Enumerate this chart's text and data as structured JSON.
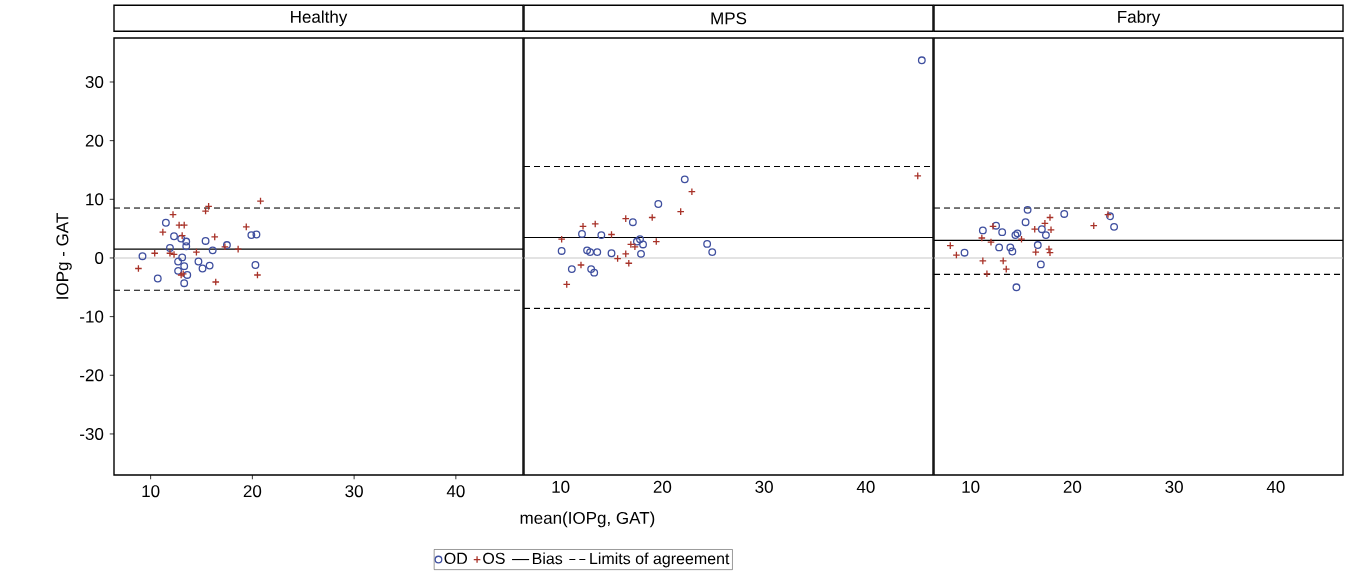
{
  "chart_data": [
    {
      "type": "scatter",
      "title": "Healthy",
      "ylabel": "IOPg - GAT",
      "xlim": [
        6.4,
        46.6
      ],
      "ylim": [
        -37,
        37.5
      ],
      "xticks": [
        10,
        20,
        30,
        40
      ],
      "yticks": [
        -30,
        -20,
        -10,
        0,
        10,
        20,
        30
      ],
      "grid": false,
      "legend": false,
      "series": [
        {
          "color": "#3f4f9f",
          "marker": "circle",
          "x": [
            9.2,
            10.7,
            11.5,
            12.3,
            11.9,
            13.0,
            13.5,
            13.5,
            13.1,
            12.7,
            12.7,
            13.3,
            13.6,
            13.3,
            14.7,
            15.1,
            15.8,
            15.4,
            16.1,
            17.5,
            19.9,
            20.4,
            20.3
          ],
          "values": [
            0.3,
            -3.5,
            6.0,
            3.7,
            1.7,
            3.3,
            2.8,
            2.0,
            0.1,
            -0.6,
            -2.2,
            -1.4,
            -2.9,
            -4.3,
            -0.6,
            -1.8,
            -1.3,
            2.9,
            1.3,
            2.2,
            3.9,
            4.0,
            -1.2
          ]
        },
        {
          "color": "#a83228",
          "marker": "cross",
          "x": [
            8.8,
            10.4,
            11.2,
            12.2,
            11.9,
            12.3,
            12.8,
            13.3,
            13.1,
            13.0,
            13.2,
            14.5,
            15.4,
            15.7,
            16.3,
            16.4,
            17.3,
            18.6,
            19.4,
            20.8,
            20.5
          ],
          "values": [
            -1.8,
            0.8,
            4.4,
            7.4,
            0.8,
            0.6,
            5.6,
            5.6,
            3.8,
            -2.9,
            -2.7,
            1.0,
            8.0,
            8.8,
            3.6,
            -4.1,
            1.9,
            1.5,
            5.3,
            9.7,
            -2.9
          ]
        }
      ],
      "ref_lines": [
        {
          "axis": "y",
          "value": 0,
          "color": "#c8c8c8",
          "line_style": "solid"
        },
        {
          "axis": "y",
          "value": 1.5,
          "color": "#000000",
          "line_style": "solid"
        },
        {
          "axis": "y",
          "value": 8.5,
          "color": "#000000",
          "line_style": "dashed"
        },
        {
          "axis": "y",
          "value": -5.5,
          "color": "#000000",
          "line_style": "dashed"
        }
      ]
    },
    {
      "type": "scatter",
      "title": "MPS",
      "xlabel": "mean(IOPg, GAT)",
      "xlim": [
        6.4,
        46.6
      ],
      "ylim": [
        -37,
        37.5
      ],
      "xticks": [
        10,
        20,
        30,
        40
      ],
      "yticks": [
        -30,
        -20,
        -10,
        0,
        10,
        20,
        30
      ],
      "tick_labels": "x",
      "grid": false,
      "legend": "bottom",
      "series": [
        {
          "name": "OD",
          "color": "#3f4f9f",
          "marker": "circle",
          "x": [
            45.5,
            22.2,
            19.6,
            17.1,
            12.1,
            14.0,
            17.8,
            17.5,
            18.1,
            10.1,
            12.6,
            12.9,
            13.6,
            15.0,
            17.9,
            11.1,
            13.0,
            13.3,
            24.4,
            24.9
          ],
          "values": [
            33.7,
            13.4,
            9.2,
            6.1,
            4.1,
            3.9,
            3.2,
            2.8,
            2.3,
            1.2,
            1.3,
            1.0,
            1.0,
            0.8,
            0.7,
            -1.9,
            -1.9,
            -2.5,
            2.4,
            1.0
          ]
        },
        {
          "name": "OS",
          "color": "#a83228",
          "marker": "cross",
          "x": [
            45.1,
            10.1,
            12.2,
            13.4,
            15.0,
            16.4,
            16.9,
            17.3,
            16.4,
            15.6,
            16.7,
            12.0,
            19.4,
            19.0,
            21.8,
            22.9,
            10.6
          ],
          "values": [
            14.0,
            3.2,
            5.4,
            5.8,
            4.0,
            6.7,
            2.3,
            1.9,
            0.7,
            -0.1,
            -0.9,
            -1.2,
            2.8,
            6.9,
            7.9,
            11.3,
            -4.5
          ]
        }
      ],
      "ref_lines": [
        {
          "axis": "y",
          "value": 0,
          "color": "#c8c8c8",
          "line_style": "solid"
        },
        {
          "axis": "y",
          "value": 3.5,
          "color": "#000000",
          "line_style": "solid",
          "label": "Bias"
        },
        {
          "axis": "y",
          "value": 15.6,
          "color": "#000000",
          "line_style": "dashed",
          "label": "Limits of agreement"
        },
        {
          "axis": "y",
          "value": -8.6,
          "color": "#000000",
          "line_style": "dashed"
        }
      ]
    },
    {
      "type": "scatter",
      "title": "Fabry",
      "xlim": [
        6.4,
        46.6
      ],
      "ylim": [
        -37,
        37.5
      ],
      "xticks": [
        10,
        20,
        30,
        40
      ],
      "yticks": [
        -30,
        -20,
        -10,
        0,
        10,
        20,
        30
      ],
      "tick_labels": "x",
      "grid": false,
      "legend": false,
      "series": [
        {
          "color": "#3f4f9f",
          "marker": "circle",
          "x": [
            9.4,
            11.2,
            12.5,
            13.1,
            12.8,
            13.9,
            14.1,
            14.4,
            14.6,
            15.4,
            15.6,
            16.6,
            17.0,
            17.4,
            16.9,
            14.5,
            19.2,
            23.7,
            24.1
          ],
          "values": [
            0.9,
            4.7,
            5.5,
            4.4,
            1.8,
            1.8,
            1.1,
            3.9,
            4.2,
            6.1,
            8.2,
            2.2,
            4.9,
            3.9,
            -1.1,
            -5.0,
            7.5,
            7.1,
            5.3
          ]
        },
        {
          "color": "#a83228",
          "marker": "cross",
          "x": [
            8.0,
            8.6,
            11.1,
            12.0,
            11.2,
            11.6,
            13.2,
            13.5,
            12.2,
            15.0,
            16.3,
            16.4,
            17.3,
            17.8,
            17.9,
            17.7,
            17.8,
            22.1,
            23.5
          ],
          "values": [
            2.1,
            0.5,
            3.4,
            2.7,
            -0.5,
            -2.7,
            -0.5,
            -1.9,
            5.4,
            3.2,
            4.9,
            1.0,
            5.9,
            6.9,
            4.8,
            1.5,
            0.9,
            5.5,
            7.4
          ]
        }
      ],
      "ref_lines": [
        {
          "axis": "y",
          "value": 0,
          "color": "#c8c8c8",
          "line_style": "solid"
        },
        {
          "axis": "y",
          "value": 3.0,
          "color": "#000000",
          "line_style": "solid"
        },
        {
          "axis": "y",
          "value": 8.5,
          "color": "#000000",
          "line_style": "dashed"
        },
        {
          "axis": "y",
          "value": -2.8,
          "color": "#000000",
          "line_style": "dashed"
        }
      ]
    }
  ]
}
